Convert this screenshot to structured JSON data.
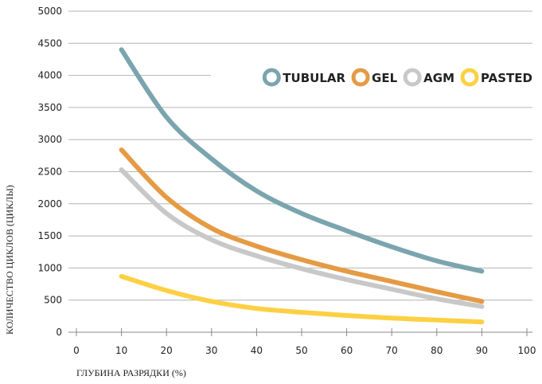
{
  "chart_data": {
    "type": "line",
    "title": "",
    "xlabel": "ГЛУБИНА РАЗРЯДКИ (%)",
    "ylabel": "КОЛИЧЕСТВО ЦИКЛОВ (ЦИКЛЫ)",
    "xlim": [
      0,
      100
    ],
    "ylim": [
      0,
      5000
    ],
    "x_ticks": [
      "0",
      "10",
      "20",
      "30",
      "40",
      "50",
      "60",
      "70",
      "80",
      "90",
      "100"
    ],
    "y_ticks": [
      "0",
      "500",
      "1000",
      "1500",
      "2000",
      "2500",
      "3000",
      "3500",
      "4000",
      "4500",
      "5000"
    ],
    "grid": "horizontal",
    "legend": "top-right",
    "series": [
      {
        "name": "TUBULAR",
        "color": "#7ba5ae",
        "x": [
          10,
          20,
          30,
          40,
          50,
          60,
          70,
          80,
          90
        ],
        "values": [
          4400,
          3350,
          2700,
          2200,
          1850,
          1580,
          1330,
          1110,
          950
        ]
      },
      {
        "name": "GEL",
        "color": "#e59a44",
        "x": [
          10,
          20,
          30,
          40,
          50,
          60,
          70,
          80,
          90
        ],
        "values": [
          2840,
          2100,
          1620,
          1340,
          1130,
          950,
          790,
          630,
          480
        ]
      },
      {
        "name": "AGM",
        "color": "#c8c8c8",
        "x": [
          10,
          20,
          30,
          40,
          50,
          60,
          70,
          80,
          90
        ],
        "values": [
          2530,
          1850,
          1440,
          1190,
          990,
          820,
          670,
          520,
          400
        ]
      },
      {
        "name": "PASTED",
        "color": "#fdd044",
        "x": [
          10,
          20,
          30,
          40,
          50,
          60,
          70,
          80,
          90
        ],
        "values": [
          870,
          650,
          480,
          370,
          310,
          260,
          220,
          190,
          160
        ]
      }
    ]
  }
}
